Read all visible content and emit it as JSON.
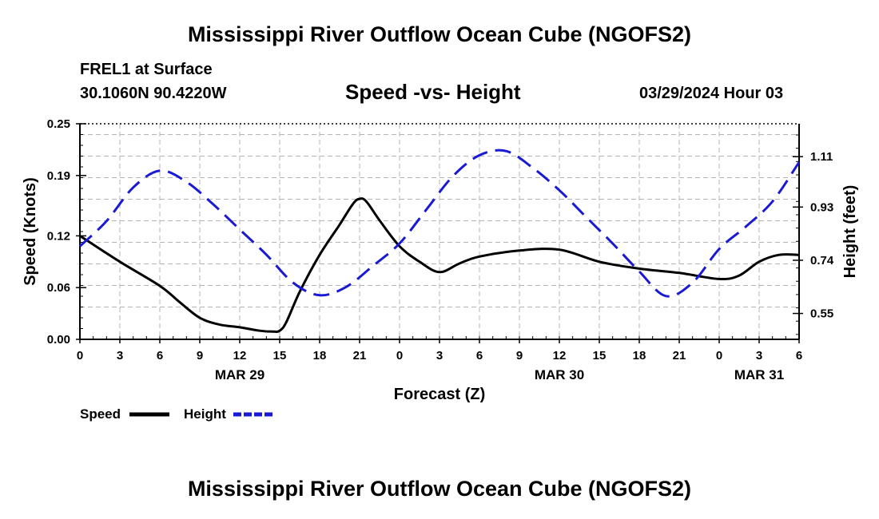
{
  "header": {
    "title": "Mississippi River Outflow Ocean Cube (NGOFS2)",
    "station": "FREL1 at Surface",
    "coordinates": "30.1060N  90.4220W",
    "subtitle": "Speed -vs- Height",
    "datetime": "03/29/2024 Hour 03"
  },
  "footer": {
    "title": "Mississippi River Outflow Ocean Cube (NGOFS2)"
  },
  "chart_data": {
    "type": "line",
    "title": "Speed -vs- Height",
    "xlabel": "Forecast (Z)",
    "ylabel": "Speed (Knots)",
    "y2label": "Height (feet)",
    "x_unit": "hours from 00Z MAR 29",
    "xlim": [
      0,
      54
    ],
    "ylim": [
      0,
      0.25
    ],
    "y2lim": [
      0.4575,
      1.2275
    ],
    "x_ticks": [
      0,
      3,
      6,
      9,
      12,
      15,
      18,
      21,
      24,
      27,
      30,
      33,
      36,
      39,
      42,
      45,
      48,
      51,
      54
    ],
    "x_tick_labels": [
      "0",
      "3",
      "6",
      "9",
      "12",
      "15",
      "18",
      "21",
      "0",
      "3",
      "6",
      "9",
      "12",
      "15",
      "18",
      "21",
      "0",
      "3",
      "6"
    ],
    "date_labels": [
      {
        "x": 12,
        "label": "MAR 29"
      },
      {
        "x": 36,
        "label": "MAR 30"
      },
      {
        "x": 51,
        "label": "MAR 31"
      }
    ],
    "y_ticks": [
      0,
      0.06,
      0.12,
      0.19,
      0.25
    ],
    "y_tick_labels": [
      "0.00",
      "0.06",
      "0.12",
      "0.19",
      "0.25"
    ],
    "y2_ticks": [
      0.55,
      0.74,
      0.93,
      1.11
    ],
    "y2_tick_labels": [
      "0.55",
      "0.74",
      "0.93",
      "1.11"
    ],
    "grid": true,
    "legend": [
      {
        "name": "Speed",
        "style": "solid",
        "color": "#000000"
      },
      {
        "name": "Height",
        "style": "dashed",
        "color": "#1a1ad6"
      }
    ],
    "series": [
      {
        "name": "Speed",
        "axis": "left",
        "color": "#000000",
        "style": "solid",
        "x": [
          0,
          3,
          6,
          7.5,
          9,
          10.5,
          12,
          13.5,
          14.5,
          15,
          15.5,
          16.5,
          18,
          19.5,
          20.5,
          21,
          21.5,
          22.5,
          24,
          25.5,
          27,
          28.5,
          30,
          33,
          36,
          39,
          42,
          45,
          48,
          49.5,
          51,
          52.5,
          54
        ],
        "values": [
          0.12,
          0.09,
          0.062,
          0.043,
          0.025,
          0.017,
          0.014,
          0.01,
          0.009,
          0.01,
          0.02,
          0.055,
          0.098,
          0.133,
          0.157,
          0.163,
          0.16,
          0.138,
          0.108,
          0.09,
          0.078,
          0.088,
          0.096,
          0.103,
          0.104,
          0.09,
          0.082,
          0.077,
          0.07,
          0.074,
          0.09,
          0.098,
          0.098
        ]
      },
      {
        "name": "Height",
        "axis": "right",
        "color": "#1a1ad6",
        "style": "dashed",
        "x": [
          0,
          2,
          4,
          6,
          8,
          10,
          12,
          14,
          16,
          18,
          20,
          22,
          24,
          26,
          28,
          30,
          32,
          34,
          36,
          38,
          40,
          42,
          44,
          46,
          48,
          50,
          52,
          54
        ],
        "values": [
          0.79,
          0.88,
          1.0,
          1.06,
          1.02,
          0.94,
          0.85,
          0.76,
          0.66,
          0.615,
          0.645,
          0.72,
          0.8,
          0.92,
          1.04,
          1.115,
          1.13,
          1.07,
          0.99,
          0.895,
          0.8,
          0.7,
          0.612,
          0.66,
          0.78,
          0.86,
          0.95,
          1.09
        ]
      }
    ]
  }
}
